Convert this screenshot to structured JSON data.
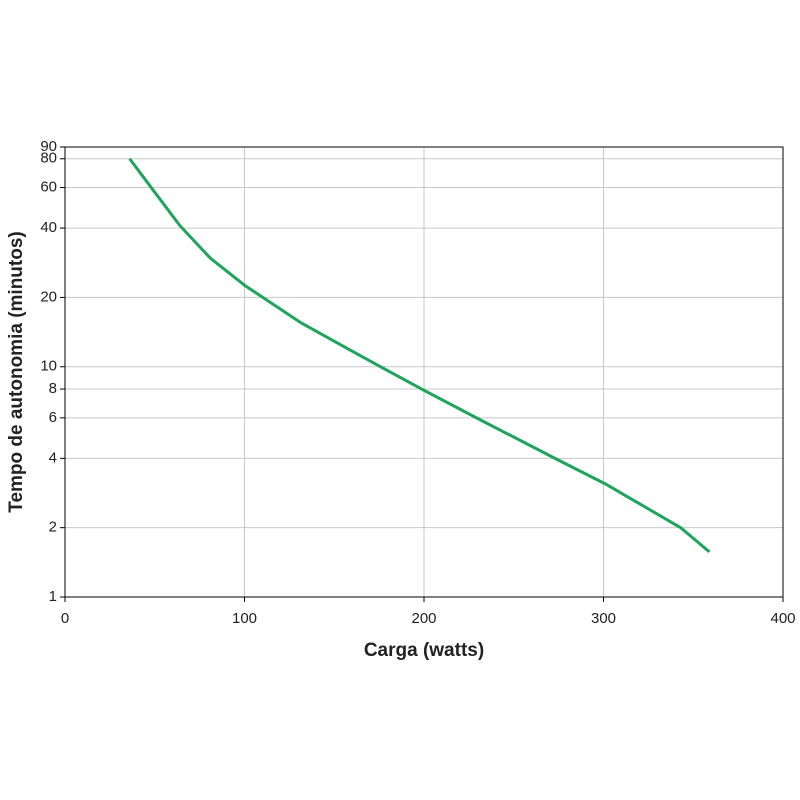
{
  "chart_data": {
    "type": "line",
    "x_label": "Carga (watts)",
    "y_label": "Tempo de autonomia (minutos)",
    "xlim": [
      0,
      400
    ],
    "xticks": [
      0,
      100,
      200,
      300,
      400
    ],
    "ylim": [
      1,
      90
    ],
    "yticks": [
      1,
      2,
      4,
      6,
      8,
      10,
      20,
      40,
      60,
      80,
      90
    ],
    "y_scale": "log",
    "grid": true,
    "x": [
      36,
      47,
      64,
      81,
      100,
      131,
      159,
      181,
      200,
      231,
      273,
      301,
      343,
      359
    ],
    "series": [
      {
        "color": "#1ea45c",
        "values": [
          80,
          61.5,
          41,
          29.6,
          22.6,
          15.6,
          11.8,
          9.5,
          7.9,
          5.9,
          4.0,
          3.1,
          2.0,
          1.57
        ]
      }
    ]
  }
}
